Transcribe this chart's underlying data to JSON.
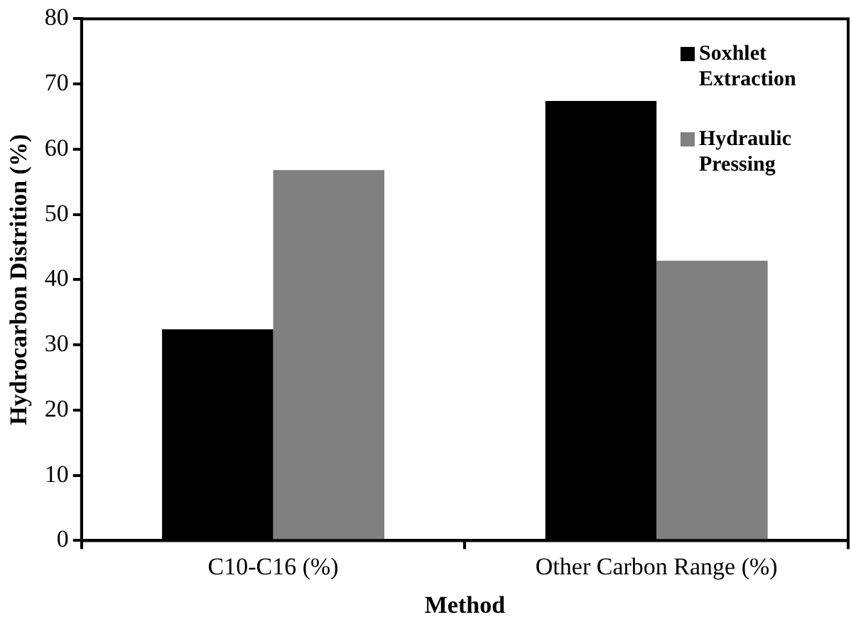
{
  "chart_data": {
    "type": "bar",
    "xlabel": "Method",
    "ylabel": "Hydrocarbon Distrition (%)",
    "categories": [
      "C10-C16 (%)",
      "Other Carbon Range (%)"
    ],
    "series": [
      {
        "name": "Soxhlet Extraction",
        "color": "#000000",
        "values": [
          32.4,
          67.4
        ]
      },
      {
        "name": "Hydraulic Pressing",
        "color": "#808080",
        "values": [
          56.8,
          42.9
        ]
      }
    ],
    "ylim": [
      0,
      80
    ],
    "yticks": [
      0,
      10,
      20,
      30,
      40,
      50,
      60,
      70,
      80
    ],
    "grid": false,
    "legend": "top right"
  }
}
